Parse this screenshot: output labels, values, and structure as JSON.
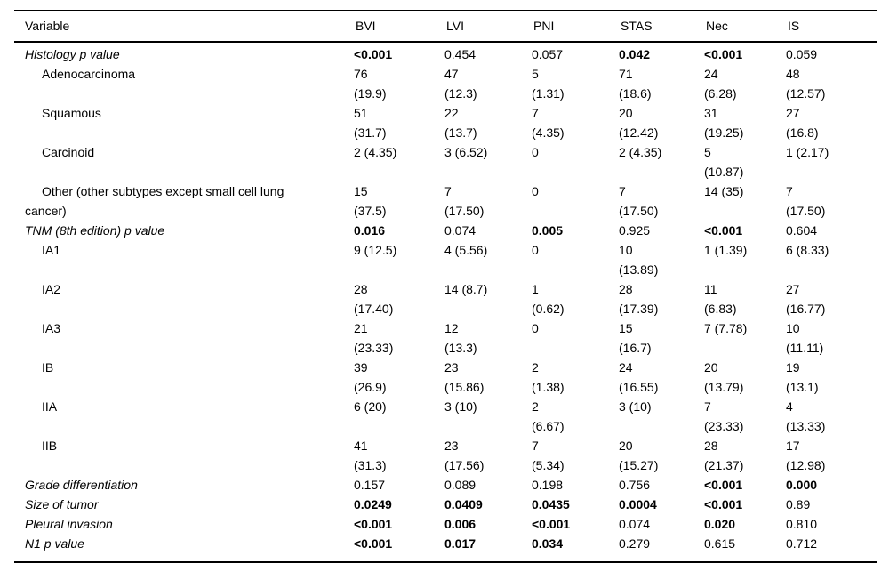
{
  "table": {
    "columns": [
      "Variable",
      "BVI",
      "LVI",
      "PNI",
      "STAS",
      "Nec",
      "IS"
    ],
    "rows": [
      {
        "label": "Histology p value",
        "style": "section",
        "cells": [
          {
            "t": "<0.001",
            "b": true
          },
          {
            "t": "0.454",
            "b": false
          },
          {
            "t": "0.057",
            "b": false
          },
          {
            "t": "0.042",
            "b": true
          },
          {
            "t": "<0.001",
            "b": true
          },
          {
            "t": "0.059",
            "b": false
          }
        ]
      },
      {
        "label": "Adenocarcinoma",
        "style": "sub",
        "cells": [
          {
            "t": "76\n(19.9)",
            "b": false
          },
          {
            "t": "47\n(12.3)",
            "b": false
          },
          {
            "t": "5\n(1.31)",
            "b": false
          },
          {
            "t": "71\n(18.6)",
            "b": false
          },
          {
            "t": "24\n(6.28)",
            "b": false
          },
          {
            "t": "48\n(12.57)",
            "b": false
          }
        ]
      },
      {
        "label": "Squamous",
        "style": "sub",
        "cells": [
          {
            "t": "51\n(31.7)",
            "b": false
          },
          {
            "t": "22\n(13.7)",
            "b": false
          },
          {
            "t": "7\n(4.35)",
            "b": false
          },
          {
            "t": "20\n(12.42)",
            "b": false
          },
          {
            "t": "31\n(19.25)",
            "b": false
          },
          {
            "t": "27\n(16.8)",
            "b": false
          }
        ]
      },
      {
        "label": "Carcinoid",
        "style": "sub",
        "cells": [
          {
            "t": "2 (4.35)",
            "b": false
          },
          {
            "t": "3 (6.52)",
            "b": false
          },
          {
            "t": "0",
            "b": false
          },
          {
            "t": "2 (4.35)",
            "b": false
          },
          {
            "t": "5\n(10.87)",
            "b": false
          },
          {
            "t": "1 (2.17)",
            "b": false
          }
        ]
      },
      {
        "label": "Other (other subtypes except small cell lung\ncancer)",
        "style": "sub",
        "cells": [
          {
            "t": "15\n(37.5)",
            "b": false
          },
          {
            "t": "7\n(17.50)",
            "b": false
          },
          {
            "t": "0",
            "b": false
          },
          {
            "t": "7\n(17.50)",
            "b": false
          },
          {
            "t": "14 (35)",
            "b": false
          },
          {
            "t": "7\n(17.50)",
            "b": false
          }
        ]
      },
      {
        "label": "TNM (8th edition) p value",
        "style": "section",
        "cells": [
          {
            "t": "0.016",
            "b": true
          },
          {
            "t": "0.074",
            "b": false
          },
          {
            "t": "0.005",
            "b": true
          },
          {
            "t": "0.925",
            "b": false
          },
          {
            "t": "<0.001",
            "b": true
          },
          {
            "t": "0.604",
            "b": false
          }
        ]
      },
      {
        "label": "IA1",
        "style": "sub",
        "cells": [
          {
            "t": "9 (12.5)",
            "b": false
          },
          {
            "t": "4 (5.56)",
            "b": false
          },
          {
            "t": "0",
            "b": false
          },
          {
            "t": "10\n(13.89)",
            "b": false
          },
          {
            "t": "1 (1.39)",
            "b": false
          },
          {
            "t": "6 (8.33)",
            "b": false
          }
        ]
      },
      {
        "label": "IA2",
        "style": "sub",
        "cells": [
          {
            "t": "28\n(17.40)",
            "b": false
          },
          {
            "t": "14 (8.7)",
            "b": false
          },
          {
            "t": "1\n(0.62)",
            "b": false
          },
          {
            "t": "28\n(17.39)",
            "b": false
          },
          {
            "t": "11\n(6.83)",
            "b": false
          },
          {
            "t": "27\n(16.77)",
            "b": false
          }
        ]
      },
      {
        "label": "IA3",
        "style": "sub",
        "cells": [
          {
            "t": "21\n(23.33)",
            "b": false
          },
          {
            "t": "12\n(13.3)",
            "b": false
          },
          {
            "t": "0",
            "b": false
          },
          {
            "t": "15\n(16.7)",
            "b": false
          },
          {
            "t": "7 (7.78)",
            "b": false
          },
          {
            "t": "10\n(11.11)",
            "b": false
          }
        ]
      },
      {
        "label": "IB",
        "style": "sub",
        "cells": [
          {
            "t": "39\n(26.9)",
            "b": false
          },
          {
            "t": "23\n(15.86)",
            "b": false
          },
          {
            "t": "2\n(1.38)",
            "b": false
          },
          {
            "t": "24\n(16.55)",
            "b": false
          },
          {
            "t": "20\n(13.79)",
            "b": false
          },
          {
            "t": "19\n(13.1)",
            "b": false
          }
        ]
      },
      {
        "label": "IIA",
        "style": "sub",
        "cells": [
          {
            "t": "6 (20)",
            "b": false
          },
          {
            "t": "3 (10)",
            "b": false
          },
          {
            "t": "2\n(6.67)",
            "b": false
          },
          {
            "t": "3 (10)",
            "b": false
          },
          {
            "t": "7\n(23.33)",
            "b": false
          },
          {
            "t": "4\n(13.33)",
            "b": false
          }
        ]
      },
      {
        "label": "IIB",
        "style": "sub",
        "cells": [
          {
            "t": "41\n(31.3)",
            "b": false
          },
          {
            "t": "23\n(17.56)",
            "b": false
          },
          {
            "t": "7\n(5.34)",
            "b": false
          },
          {
            "t": "20\n(15.27)",
            "b": false
          },
          {
            "t": "28\n(21.37)",
            "b": false
          },
          {
            "t": "17\n(12.98)",
            "b": false
          }
        ]
      },
      {
        "label": "Grade differentiation",
        "style": "section",
        "cells": [
          {
            "t": "0.157",
            "b": false
          },
          {
            "t": "0.089",
            "b": false
          },
          {
            "t": "0.198",
            "b": false
          },
          {
            "t": "0.756",
            "b": false
          },
          {
            "t": "<0.001",
            "b": true
          },
          {
            "t": "0.000",
            "b": true
          }
        ]
      },
      {
        "label": "Size of tumor",
        "style": "section",
        "cells": [
          {
            "t": "0.0249",
            "b": true
          },
          {
            "t": "0.0409",
            "b": true
          },
          {
            "t": "0.0435",
            "b": true
          },
          {
            "t": "0.0004",
            "b": true
          },
          {
            "t": "<0.001",
            "b": true
          },
          {
            "t": "0.89",
            "b": false
          }
        ]
      },
      {
        "label": "Pleural invasion",
        "style": "section",
        "cells": [
          {
            "t": "<0.001",
            "b": true
          },
          {
            "t": "0.006",
            "b": true
          },
          {
            "t": "<0.001",
            "b": true
          },
          {
            "t": "0.074",
            "b": false
          },
          {
            "t": "0.020",
            "b": true
          },
          {
            "t": "0.810",
            "b": false
          }
        ]
      },
      {
        "label": "N1 p value",
        "style": "section",
        "cells": [
          {
            "t": "<0.001",
            "b": true
          },
          {
            "t": "0.017",
            "b": true
          },
          {
            "t": "0.034",
            "b": true
          },
          {
            "t": "0.279",
            "b": false
          },
          {
            "t": "0.615",
            "b": false
          },
          {
            "t": "0.712",
            "b": false
          }
        ]
      }
    ]
  },
  "colors": {
    "text": "#000000",
    "background": "#ffffff",
    "rule": "#000000"
  }
}
